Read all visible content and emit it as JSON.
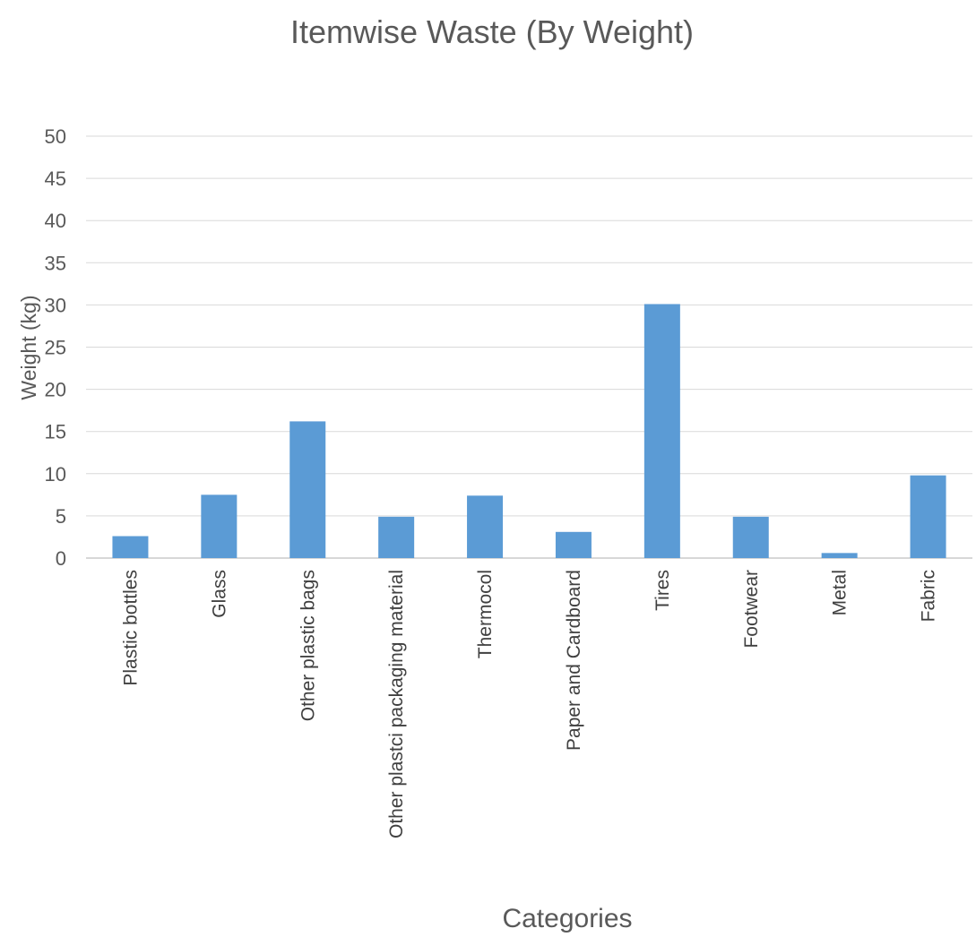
{
  "chart_data": {
    "type": "bar",
    "title": "Itemwise Waste (By Weight)",
    "xlabel": "Categories",
    "ylabel": "Weight (kg)",
    "ylim": [
      0,
      50
    ],
    "yticks": [
      0,
      5,
      10,
      15,
      20,
      25,
      30,
      35,
      40,
      45,
      50
    ],
    "grid": true,
    "legend": "none",
    "bar_color": "#5b9bd5",
    "categories": [
      "Plastic bottles",
      "Glass",
      "Other plastic bags",
      "Other plastci packaging material",
      "Thermocol",
      "Paper and Cardboard",
      "Tires",
      "Footwear",
      "Metal",
      "Fabric"
    ],
    "values": [
      2.6,
      7.5,
      16.2,
      4.9,
      7.4,
      3.1,
      30.1,
      4.9,
      0.6,
      9.8
    ]
  }
}
